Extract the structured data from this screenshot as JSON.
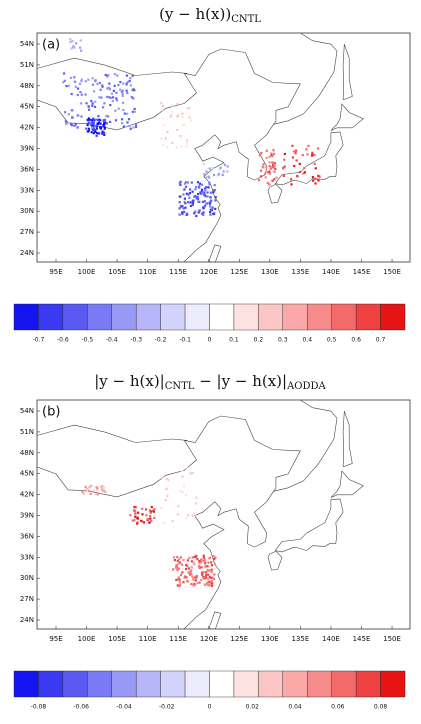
{
  "panels": [
    {
      "title": {
        "parts": [
          "(y − h(x))",
          "CNTL"
        ]
      },
      "label": "(a)",
      "lat_labels": [
        "54N",
        "51N",
        "48N",
        "45N",
        "42N",
        "39N",
        "36N",
        "33N",
        "30N",
        "27N",
        "24N"
      ],
      "lon_labels": [
        "95E",
        "100E",
        "105E",
        "110E",
        "115E",
        "120E",
        "125E",
        "130E",
        "135E",
        "140E",
        "145E",
        "150E"
      ],
      "colorbar": {
        "labels": [
          "-0.7",
          "-0.6",
          "-0.5",
          "-0.4",
          "-0.3",
          "-0.2",
          "-0.1",
          "0",
          "0.1",
          "0.2",
          "0.3",
          "0.4",
          "0.5",
          "0.6",
          "0.7"
        ],
        "colors": [
          "#1414f0",
          "#3a3af2",
          "#5a5af2",
          "#7a7af4",
          "#9898f6",
          "#b6b6f8",
          "#d2d2fa",
          "#ececfd",
          "#ffffff",
          "#fde2e2",
          "#fcc6c6",
          "#faa8a8",
          "#f78a8a",
          "#f36a6a",
          "#ee4242",
          "#e61414"
        ]
      }
    },
    {
      "title": {
        "parts": [
          "|y − h(x)|",
          "CNTL",
          " − |y − h(x)|",
          "AODDA"
        ]
      },
      "label": "(b)",
      "lat_labels": [
        "54N",
        "51N",
        "48N",
        "45N",
        "42N",
        "39N",
        "36N",
        "33N",
        "30N",
        "27N",
        "24N"
      ],
      "lon_labels": [
        "95E",
        "100E",
        "105E",
        "110E",
        "115E",
        "120E",
        "125E",
        "130E",
        "135E",
        "140E",
        "145E",
        "150E"
      ],
      "colorbar": {
        "labels": [
          "-0.08",
          "-0.06",
          "-0.04",
          "-0.02",
          "0",
          "0.02",
          "0.04",
          "0.06",
          "0.08"
        ],
        "colors": [
          "#1414f0",
          "#3a3af2",
          "#5a5af2",
          "#7a7af4",
          "#9898f6",
          "#b6b6f8",
          "#d2d2fa",
          "#ececfd",
          "#ffffff",
          "#fde2e2",
          "#fcc6c6",
          "#faa8a8",
          "#f78a8a",
          "#f36a6a",
          "#ee4242",
          "#e61414"
        ]
      }
    }
  ]
}
